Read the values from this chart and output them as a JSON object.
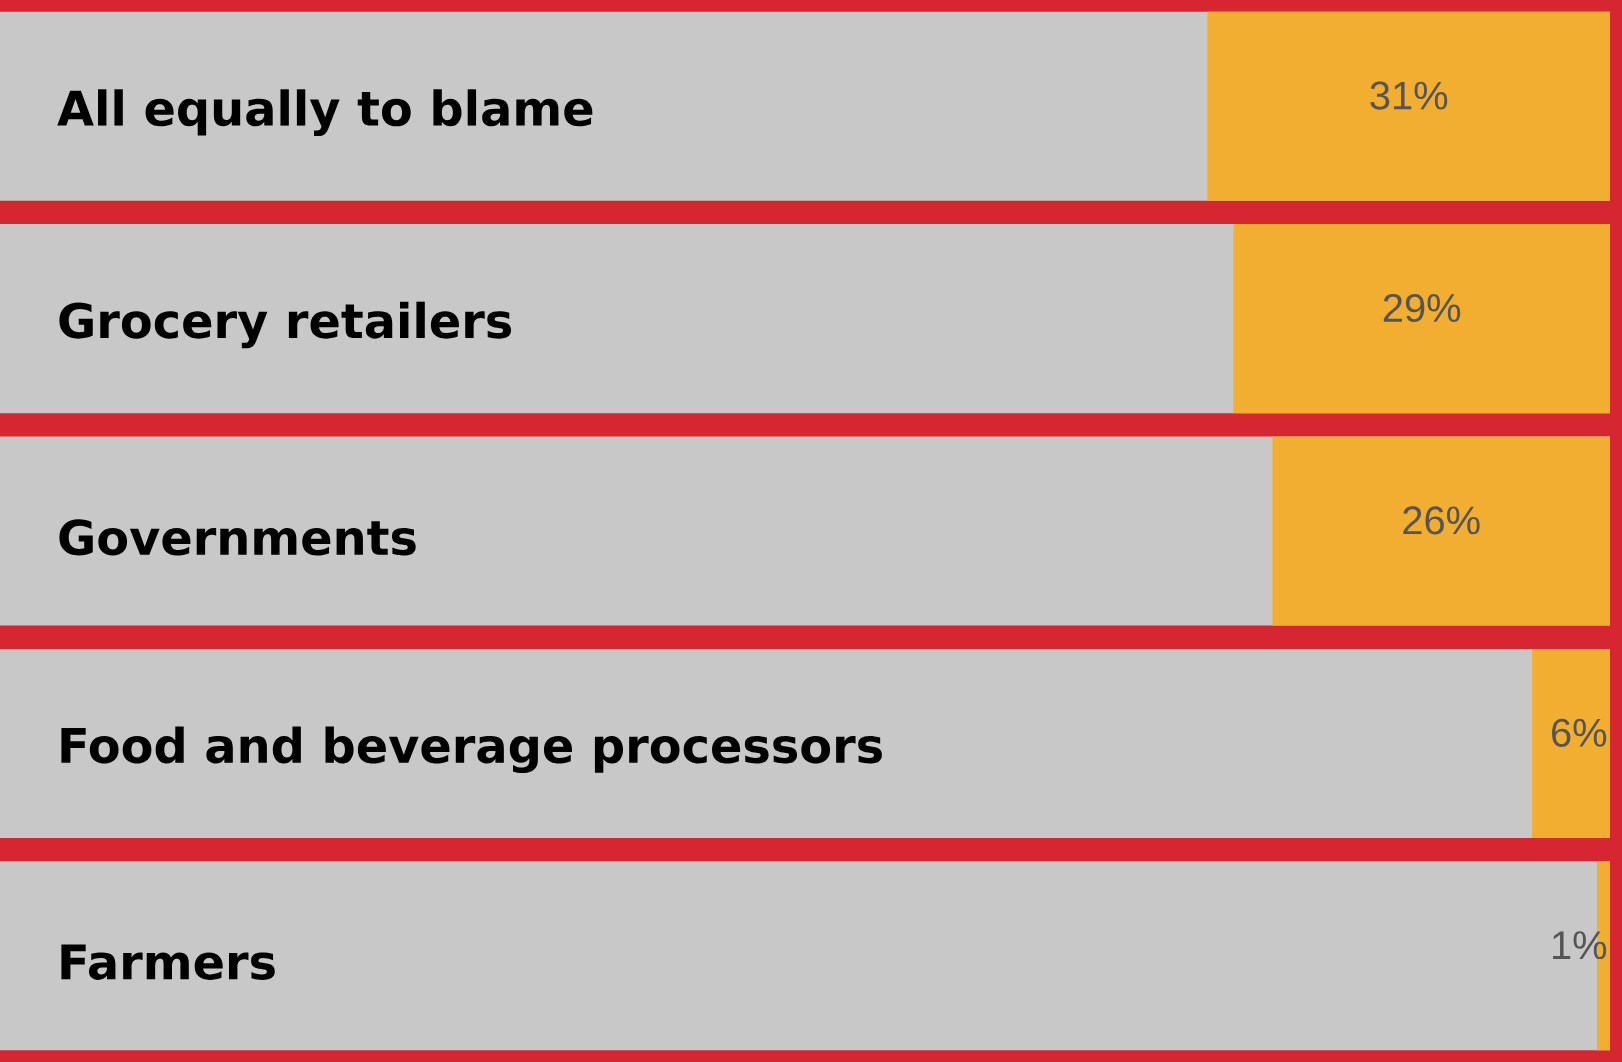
{
  "chart_data": {
    "type": "bar",
    "orientation": "horizontal",
    "categories": [
      "All equally to blame",
      "Grocery retailers",
      "Governments",
      "Food and beverage processors",
      "Farmers"
    ],
    "values": [
      31,
      29,
      26,
      6,
      1
    ],
    "value_labels": [
      "31%",
      "29%",
      "26%",
      "6%",
      "1%"
    ],
    "color": "#f2ae30",
    "xlim": [
      124,
      0
    ],
    "tick_labels": "y"
  }
}
